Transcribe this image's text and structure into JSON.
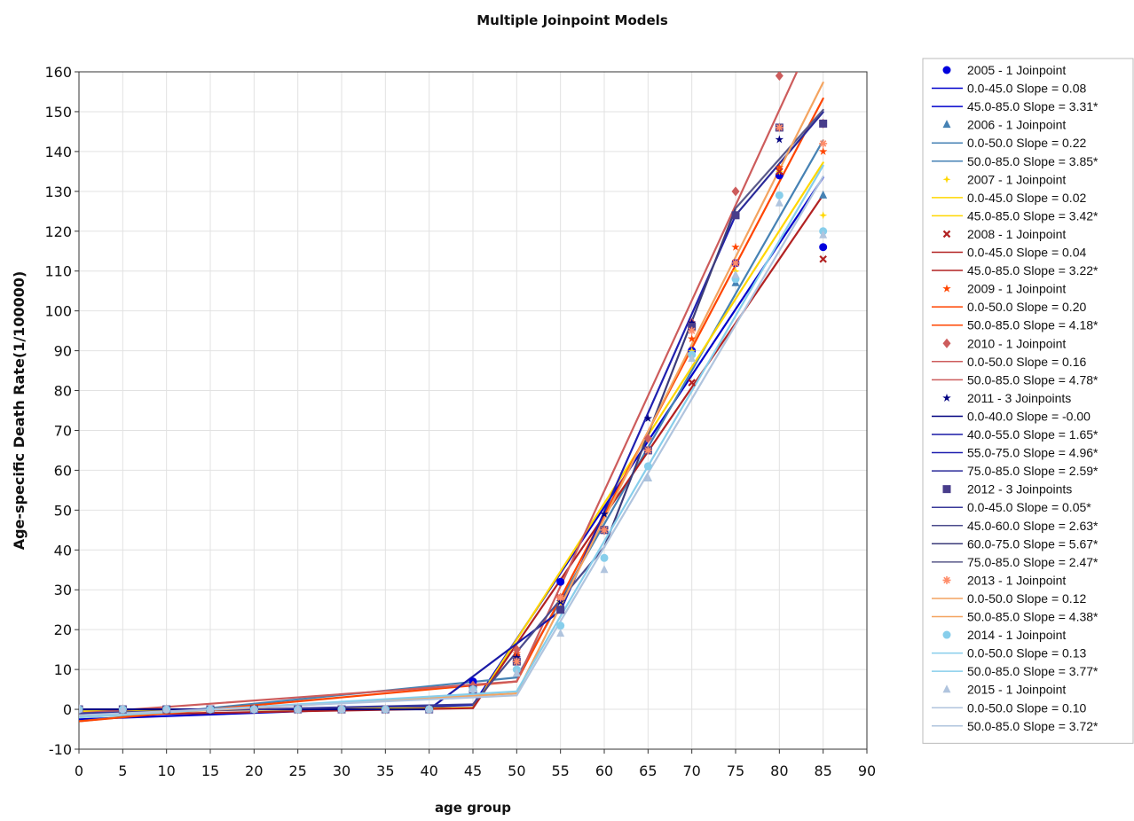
{
  "chart_data": {
    "type": "line",
    "title": "Multiple Joinpoint Models",
    "xlabel": "age group",
    "ylabel": "Age-specific Death Rate(1/100000)",
    "xlim": [
      0,
      90
    ],
    "ylim": [
      -10,
      160
    ],
    "xticks": [
      0,
      5,
      10,
      15,
      20,
      25,
      30,
      35,
      40,
      45,
      50,
      55,
      60,
      65,
      70,
      75,
      80,
      85,
      90
    ],
    "yticks": [
      -10,
      0,
      10,
      20,
      30,
      40,
      50,
      60,
      70,
      80,
      90,
      100,
      110,
      120,
      130,
      140,
      150,
      160
    ],
    "grid": true,
    "legend_position": "right",
    "x": [
      0,
      5,
      10,
      15,
      20,
      25,
      30,
      35,
      40,
      45,
      50,
      55,
      60,
      65,
      70,
      75,
      80,
      85
    ],
    "series": [
      {
        "name": "2005 - 1 Joinpoint",
        "color": "#0000dd",
        "marker": "circle",
        "values": [
          0,
          0,
          0,
          0,
          0,
          0,
          0,
          0,
          0,
          7,
          12,
          32,
          45,
          65,
          90,
          112,
          134,
          116
        ],
        "segments": [
          {
            "label": "0.0-45.0 Slope  = 0.08",
            "color": "#0000cc",
            "from": [
              0,
              -2.5
            ],
            "to": [
              45,
              1.1
            ]
          },
          {
            "label": "45.0-85.0 Slope  = 3.31*",
            "color": "#0000cc",
            "from": [
              45,
              1.1
            ],
            "to": [
              85,
              133.5
            ]
          }
        ]
      },
      {
        "name": "2006 - 1 Joinpoint",
        "color": "#4682b4",
        "marker": "triangle",
        "values": [
          0,
          0,
          0,
          0,
          0,
          0,
          0,
          0,
          0,
          5,
          13,
          25,
          45,
          58,
          97,
          107,
          146,
          129
        ],
        "segments": [
          {
            "label": "0.0-50.0 Slope  = 0.22",
            "color": "#4682b4",
            "from": [
              0,
              -3
            ],
            "to": [
              50,
              8
            ]
          },
          {
            "label": "50.0-85.0 Slope  = 3.85*",
            "color": "#4682b4",
            "from": [
              50,
              8
            ],
            "to": [
              85,
              142.8
            ]
          }
        ]
      },
      {
        "name": "2007 - 1 Joinpoint",
        "color": "#ffd700",
        "marker": "plus",
        "values": [
          0,
          0,
          0,
          0,
          0,
          0,
          0,
          0,
          0,
          5,
          12,
          27,
          45,
          65,
          90,
          110,
          135,
          124
        ],
        "segments": [
          {
            "label": "0.0-45.0 Slope  = 0.02",
            "color": "#ffd700",
            "from": [
              0,
              -0.5
            ],
            "to": [
              45,
              0.4
            ]
          },
          {
            "label": "45.0-85.0 Slope  = 3.42*",
            "color": "#ffd700",
            "from": [
              45,
              0.4
            ],
            "to": [
              85,
              137.2
            ]
          }
        ]
      },
      {
        "name": "2008 - 1 Joinpoint",
        "color": "#b22222",
        "marker": "x",
        "values": [
          0,
          0,
          0,
          0,
          0,
          0,
          0,
          0,
          0,
          5,
          13,
          28,
          45,
          65,
          82,
          112,
          135,
          113
        ],
        "segments": [
          {
            "label": "0.0-45.0 Slope  = 0.04",
            "color": "#b22222",
            "from": [
              0,
              -1.5
            ],
            "to": [
              45,
              0.3
            ]
          },
          {
            "label": "45.0-85.0 Slope  = 3.22*",
            "color": "#b22222",
            "from": [
              45,
              0.3
            ],
            "to": [
              85,
              129.1
            ]
          }
        ]
      },
      {
        "name": "2009 - 1 Joinpoint",
        "color": "#ff4500",
        "marker": "star",
        "values": [
          0,
          0,
          0,
          0,
          0,
          0,
          0,
          0,
          0,
          5,
          14,
          28,
          45,
          65,
          93,
          116,
          136,
          140
        ],
        "segments": [
          {
            "label": "0.0-50.0 Slope  = 0.20",
            "color": "#ff4500",
            "from": [
              0,
              -3
            ],
            "to": [
              50,
              7
            ]
          },
          {
            "label": "50.0-85.0 Slope  = 4.18*",
            "color": "#ff4500",
            "from": [
              50,
              7
            ],
            "to": [
              85,
              153.3
            ]
          }
        ]
      },
      {
        "name": "2010 - 1 Joinpoint",
        "color": "#cd5c5c",
        "marker": "diamond",
        "values": [
          0,
          0,
          0,
          0,
          0,
          0,
          0,
          0,
          0,
          6,
          15,
          28,
          45,
          68,
          97,
          130,
          159,
          147
        ],
        "segments": [
          {
            "label": "0.0-50.0 Slope  = 0.16",
            "color": "#cd5c5c",
            "from": [
              0,
              -1
            ],
            "to": [
              50,
              7
            ]
          },
          {
            "label": "50.0-85.0 Slope  = 4.78*",
            "color": "#cd5c5c",
            "from": [
              50,
              7
            ],
            "to": [
              85,
              174.3
            ]
          }
        ]
      },
      {
        "name": "2011 - 3 Joinpoints",
        "color": "#000080",
        "marker": "star",
        "values": [
          0,
          0,
          0,
          0,
          0,
          0,
          0,
          0,
          0,
          5,
          13,
          27,
          49,
          73,
          97,
          124,
          143,
          147
        ],
        "segments": [
          {
            "label": "0.0-40.0 Slope  = -0.00",
            "color": "#000080",
            "from": [
              0,
              0
            ],
            "to": [
              40,
              0
            ]
          },
          {
            "label": "40.0-55.0 Slope  =  1.65*",
            "color": "#1a1aa6",
            "from": [
              40,
              0
            ],
            "to": [
              55,
              24.75
            ]
          },
          {
            "label": "55.0-75.0 Slope  =  4.96*",
            "color": "#2020b0",
            "from": [
              55,
              24.75
            ],
            "to": [
              75,
              124
            ]
          },
          {
            "label": "75.0-85.0 Slope  =  2.59*",
            "color": "#2a2a99",
            "from": [
              75,
              124
            ],
            "to": [
              85,
              149.9
            ]
          }
        ]
      },
      {
        "name": "2012 - 3 Joinpoints",
        "color": "#483d8b",
        "marker": "square",
        "values": [
          0,
          0,
          0,
          0,
          0,
          0,
          0,
          0,
          0,
          5,
          12,
          25,
          45,
          65,
          96,
          124,
          146,
          147
        ],
        "segments": [
          {
            "label": "0.0-45.0 Slope  = 0.05*",
            "color": "#3a3a9a",
            "from": [
              0,
              -1
            ],
            "to": [
              45,
              1.25
            ]
          },
          {
            "label": "45.0-60.0 Slope  = 2.63*",
            "color": "#4b4b8b",
            "from": [
              45,
              1.25
            ],
            "to": [
              60,
              40.7
            ]
          },
          {
            "label": "60.0-75.0 Slope  = 5.67*",
            "color": "#3c3c7a",
            "from": [
              60,
              40.7
            ],
            "to": [
              75,
              125.75
            ]
          },
          {
            "label": "75.0-85.0 Slope  = 2.47*",
            "color": "#5a5a8a",
            "from": [
              75,
              125.75
            ],
            "to": [
              85,
              150.45
            ]
          }
        ]
      },
      {
        "name": "2013 - 1 Joinpoint",
        "color": "#ff8c69",
        "marker": "asterisk",
        "values": [
          0,
          0,
          0,
          0,
          0,
          0,
          0,
          0,
          0,
          5,
          12,
          28,
          45,
          65,
          95,
          112,
          146,
          142
        ],
        "segments": [
          {
            "label": "0.0-50.0 Slope  = 0.12",
            "color": "#f4a460",
            "from": [
              0,
              -2
            ],
            "to": [
              50,
              4
            ]
          },
          {
            "label": "50.0-85.0 Slope  = 4.38*",
            "color": "#f4a460",
            "from": [
              50,
              4
            ],
            "to": [
              85,
              157.3
            ]
          }
        ]
      },
      {
        "name": "2014 - 1 Joinpoint",
        "color": "#87ceeb",
        "marker": "circle",
        "values": [
          0,
          0,
          0,
          0,
          0,
          0,
          0,
          0,
          0,
          5,
          10,
          21,
          38,
          61,
          89,
          108,
          129,
          120
        ],
        "segments": [
          {
            "label": "0.0-50.0 Slope  = 0.13",
            "color": "#87ceeb",
            "from": [
              0,
              -2
            ],
            "to": [
              50,
              4.5
            ]
          },
          {
            "label": "50.0-85.0 Slope  = 3.77*",
            "color": "#87ceeb",
            "from": [
              50,
              4.5
            ],
            "to": [
              85,
              136.45
            ]
          }
        ]
      },
      {
        "name": "2015 - 1 Joinpoint",
        "color": "#b0c4de",
        "marker": "triangle",
        "values": [
          0,
          0,
          0,
          0,
          0,
          0,
          0,
          0,
          0,
          5,
          9,
          19,
          35,
          58,
          88,
          109,
          127,
          119
        ],
        "segments": [
          {
            "label": "0.0-50.0 Slope  = 0.10",
            "color": "#b0c4de",
            "from": [
              0,
              -1.5
            ],
            "to": [
              50,
              3.5
            ]
          },
          {
            "label": "50.0-85.0 Slope  = 3.72*",
            "color": "#b0c4de",
            "from": [
              50,
              3.5
            ],
            "to": [
              85,
              133.7
            ]
          }
        ]
      }
    ]
  }
}
